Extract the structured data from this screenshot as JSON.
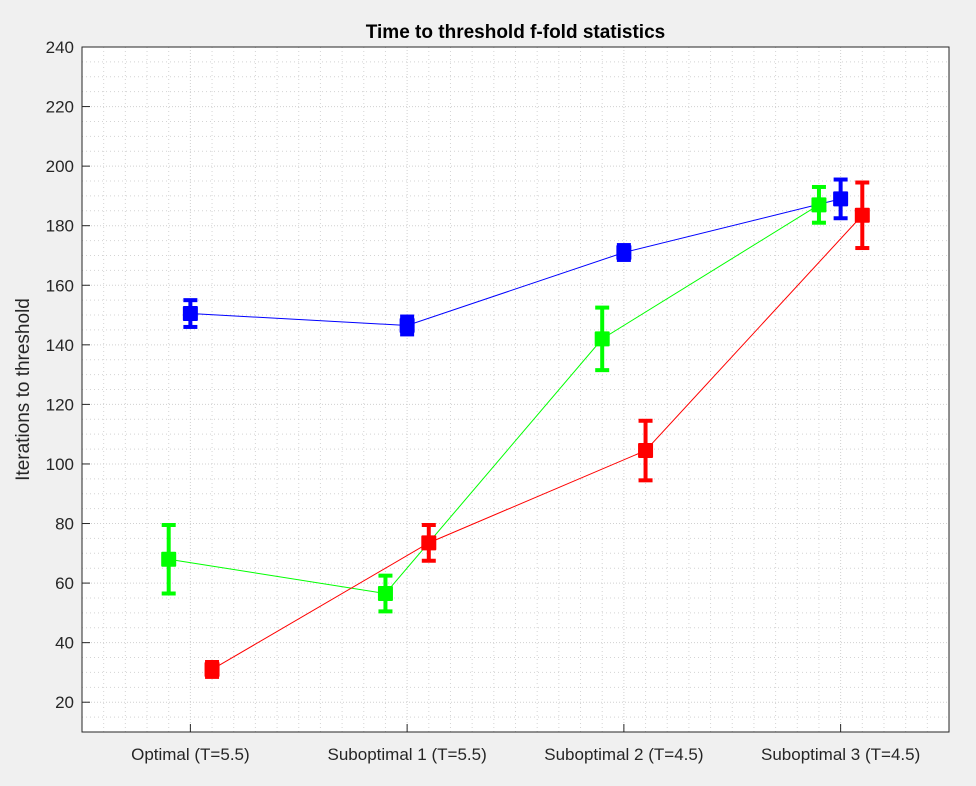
{
  "chart_data": {
    "type": "line",
    "title": "Time to threshold f-fold statistics",
    "xlabel": "",
    "ylabel": "Iterations to threshold",
    "categories": [
      "Optimal (T=5.5)",
      "Suboptimal 1 (T=5.5)",
      "Suboptimal 2 (T=4.5)",
      "Suboptimal 3 (T=4.5)"
    ],
    "ylim": [
      10,
      240
    ],
    "yticks": [
      20,
      40,
      60,
      80,
      100,
      120,
      140,
      160,
      180,
      200,
      220,
      240
    ],
    "grid": "on, with minor dotted grid",
    "error_bars": true,
    "marker": "square",
    "series": [
      {
        "color": "#0000ff",
        "offset": 0,
        "values": [
          150.5,
          146.5,
          171,
          189
        ],
        "errors": [
          4.5,
          3,
          2.5,
          6.5
        ]
      },
      {
        "color": "#00ff00",
        "offset": -0.1,
        "values": [
          68,
          56.5,
          142,
          187
        ],
        "errors": [
          11.5,
          6,
          10.5,
          6
        ]
      },
      {
        "color": "#ff0000",
        "offset": 0.1,
        "values": [
          31,
          73.5,
          104.5,
          183.5
        ],
        "errors": [
          2.5,
          6,
          10,
          11
        ]
      }
    ]
  }
}
